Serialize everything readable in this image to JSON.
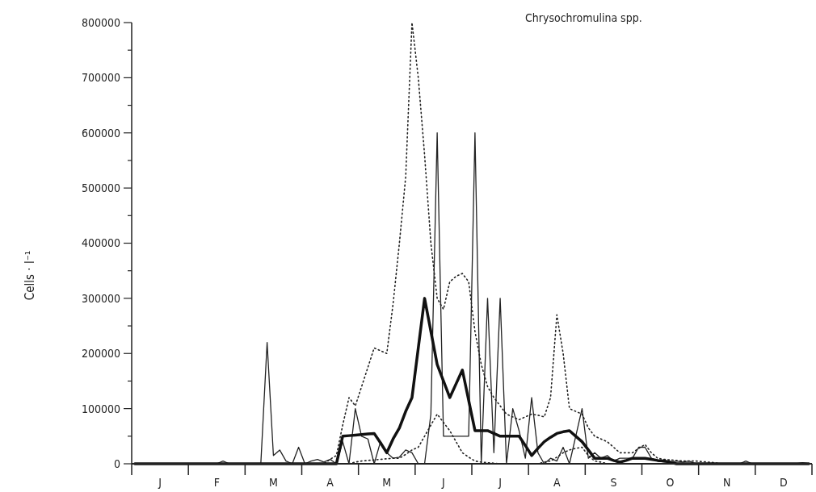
{
  "chart_data": {
    "type": "line",
    "ylabel": "Cells · l⁻¹",
    "annotations": [
      "Chrysochromulina spp."
    ],
    "categories": [
      null,
      null,
      null,
      null,
      "J",
      null,
      null,
      null,
      null,
      null,
      null,
      null,
      null,
      "F",
      null,
      null,
      null,
      null,
      null,
      null,
      null,
      null,
      "M",
      null,
      null,
      null,
      null,
      null,
      null,
      null,
      null,
      "A",
      null,
      null,
      null,
      null,
      null,
      null,
      null,
      null,
      "M",
      null,
      null,
      null,
      null,
      null,
      null,
      null,
      null,
      "J",
      null,
      null,
      null,
      null,
      null,
      null,
      null,
      null,
      "J",
      null,
      null,
      null,
      null,
      null,
      null,
      null,
      null,
      "A",
      null,
      null,
      null,
      null,
      null,
      null,
      null,
      null,
      "S",
      null,
      null,
      null,
      null,
      null,
      null,
      null,
      null,
      "O",
      null,
      null,
      null,
      null,
      null,
      null,
      null,
      null,
      "N",
      null,
      null,
      null,
      null,
      null,
      null,
      null,
      null,
      "D",
      null,
      null,
      null,
      null
    ],
    "ylim": [
      0,
      800000
    ],
    "yticks": [
      0,
      {
        "value": 50000,
        "label": null
      },
      100000,
      {
        "value": 150000,
        "label": null
      },
      200000,
      {
        "value": 250000,
        "label": null
      },
      300000,
      {
        "value": 350000,
        "label": null
      },
      400000,
      {
        "value": 450000,
        "label": null
      },
      500000,
      {
        "value": 550000,
        "label": null
      },
      600000,
      {
        "value": 650000,
        "label": null
      },
      700000,
      {
        "value": 750000,
        "label": null
      },
      800000
    ],
    "series": [
      {
        "color": "#222222",
        "line_style": "dotted",
        "values": [
          0,
          0,
          0,
          0,
          0,
          0,
          0,
          0,
          0,
          0,
          0,
          0,
          0,
          0,
          0,
          0,
          0,
          0,
          0,
          0,
          0,
          0,
          0,
          0,
          0,
          0,
          0,
          0,
          0,
          0,
          0,
          8000,
          15000,
          70000,
          120000,
          105000,
          140000,
          175000,
          210000,
          205000,
          200000,
          290000,
          400000,
          520000,
          800000,
          700000,
          560000,
          400000,
          300000,
          280000,
          330000,
          340000,
          345000,
          330000,
          240000,
          180000,
          140000,
          120000,
          105000,
          90000,
          85000,
          80000,
          85000,
          90000,
          88000,
          85000,
          120000,
          270000,
          200000,
          100000,
          95000,
          90000,
          65000,
          50000,
          45000,
          40000,
          30000,
          20000,
          20000,
          20000,
          28000,
          35000,
          20000,
          10000,
          8000,
          7000,
          6000,
          5000,
          5000,
          5000,
          4000,
          3000,
          2000,
          0,
          0,
          0,
          0,
          0,
          0,
          0,
          0,
          0,
          0,
          0,
          0,
          0,
          0,
          0
        ]
      },
      {
        "color": "#222222",
        "line_style": "dotted",
        "values": [
          0,
          0,
          0,
          0,
          0,
          0,
          0,
          0,
          0,
          0,
          0,
          0,
          0,
          0,
          0,
          0,
          0,
          0,
          0,
          0,
          0,
          0,
          0,
          0,
          0,
          0,
          0,
          0,
          0,
          0,
          0,
          0,
          0,
          0,
          0,
          3000,
          5000,
          6000,
          7000,
          8000,
          9000,
          10000,
          10000,
          17000,
          25000,
          30000,
          50000,
          70000,
          90000,
          75000,
          60000,
          40000,
          20000,
          12000,
          5000,
          3000,
          2000,
          1000,
          0,
          0,
          0,
          0,
          0,
          0,
          0,
          3000,
          5000,
          12000,
          20000,
          25000,
          28000,
          30000,
          15000,
          5000,
          3000,
          0,
          0,
          0,
          0,
          0,
          0,
          0,
          0,
          0,
          0,
          0,
          0,
          0,
          0,
          0,
          0,
          0,
          0,
          0,
          0,
          0,
          0,
          0,
          0,
          0,
          0,
          0,
          0,
          0,
          0,
          0,
          0,
          0
        ]
      },
      {
        "color": "#222222",
        "line_style": "solid",
        "values": [
          0,
          0,
          0,
          0,
          0,
          0,
          0,
          0,
          0,
          0,
          0,
          0,
          0,
          0,
          5000,
          0,
          0,
          0,
          0,
          0,
          0,
          220000,
          15000,
          25000,
          5000,
          0,
          30000,
          0,
          5000,
          8000,
          3000,
          8000,
          0,
          40000,
          0,
          100000,
          50000,
          45000,
          0,
          40000,
          20000,
          10000,
          12000,
          25000,
          20000,
          0,
          0,
          90000,
          600000,
          50000,
          50000,
          50000,
          50000,
          50000,
          600000,
          0,
          300000,
          20000,
          300000,
          0,
          100000,
          60000,
          10000,
          120000,
          20000,
          0,
          10000,
          5000,
          30000,
          0,
          50000,
          100000,
          10000,
          20000,
          10000,
          15000,
          5000,
          10000,
          10000,
          10000,
          30000,
          30000,
          10000,
          5000,
          3000,
          3000,
          5000,
          3000,
          5000,
          0,
          0,
          0,
          0,
          0,
          0,
          0,
          0,
          5000,
          0,
          0,
          0,
          0,
          0,
          0,
          0,
          0,
          2000,
          0
        ]
      },
      {
        "color": "#111111",
        "line_style": "solid",
        "values": [
          0,
          0,
          0,
          0,
          0,
          0,
          0,
          0,
          0,
          0,
          0,
          0,
          0,
          0,
          0,
          0,
          0,
          0,
          0,
          0,
          0,
          0,
          0,
          0,
          0,
          0,
          0,
          0,
          0,
          0,
          0,
          0,
          0,
          50000,
          51000,
          52000,
          53000,
          54000,
          55000,
          38000,
          20000,
          45000,
          65000,
          95000,
          120000,
          210000,
          300000,
          240000,
          180000,
          150000,
          120000,
          145000,
          170000,
          115000,
          60000,
          60000,
          60000,
          55000,
          50000,
          50000,
          50000,
          50000,
          33000,
          15000,
          28000,
          40000,
          48000,
          55000,
          58000,
          60000,
          50000,
          40000,
          25000,
          10000,
          10000,
          10000,
          6000,
          3000,
          6000,
          10000,
          10000,
          10000,
          8000,
          6000,
          5000,
          3000,
          0,
          0,
          0,
          0,
          0,
          0,
          0,
          0,
          0,
          0,
          0,
          0,
          0,
          0,
          0,
          0,
          0,
          0,
          0,
          0,
          0,
          0
        ]
      }
    ]
  }
}
